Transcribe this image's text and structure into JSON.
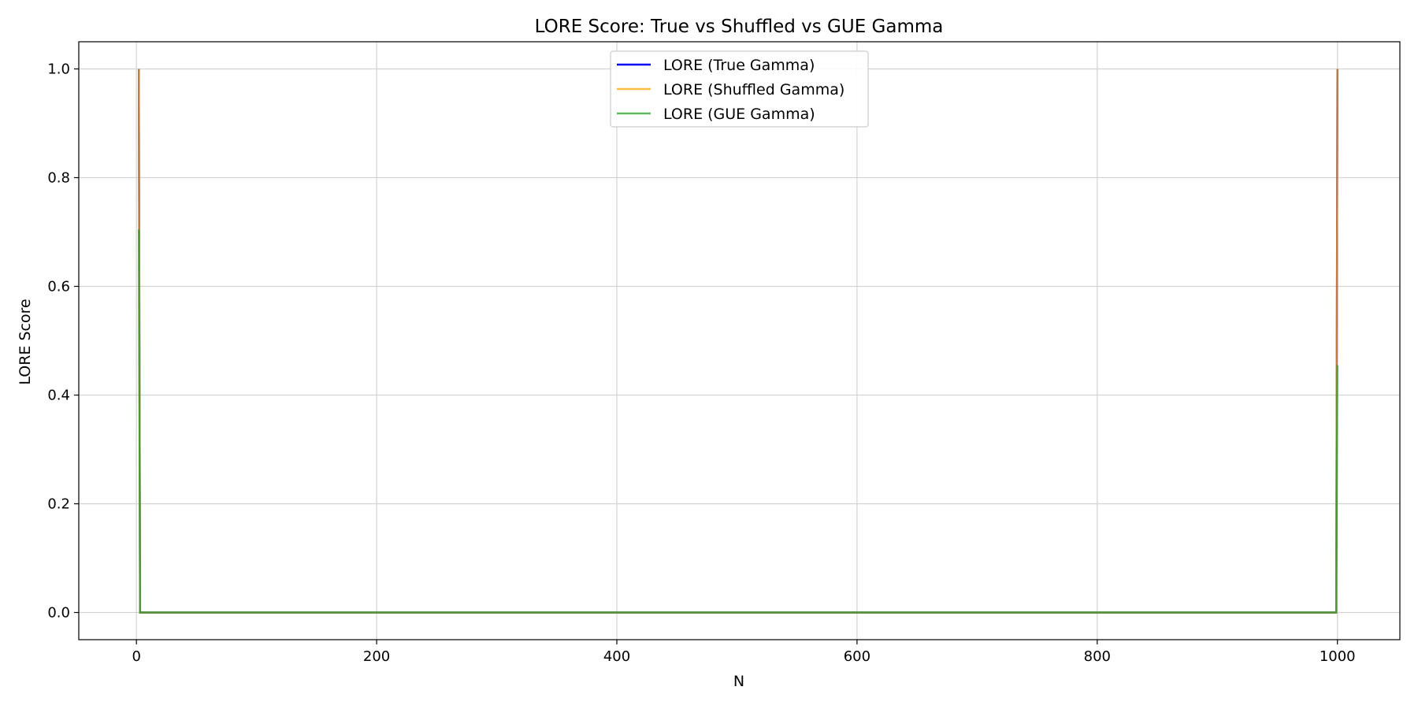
{
  "chart_data": {
    "type": "line",
    "title": "LORE Score: True vs Shuffled vs GUE Gamma",
    "xlabel": "N",
    "ylabel": "LORE Score",
    "xlim": [
      -48,
      1052
    ],
    "ylim": [
      -0.05,
      1.05
    ],
    "xticks": [
      0,
      200,
      400,
      600,
      800,
      1000
    ],
    "yticks": [
      0.0,
      0.2,
      0.4,
      0.6,
      0.8,
      1.0
    ],
    "xtick_labels": [
      "0",
      "200",
      "400",
      "600",
      "800",
      "1000"
    ],
    "ytick_labels": [
      "0.0",
      "0.2",
      "0.4",
      "0.6",
      "0.8",
      "1.0"
    ],
    "grid": true,
    "legend_position": "top-center",
    "series": [
      {
        "name": "LORE (True Gamma)",
        "color": "#0000ff",
        "x": [
          2,
          3,
          999,
          1000
        ],
        "y": [
          1.0,
          0.0,
          0.0,
          1.0
        ]
      },
      {
        "name": "LORE (Shuffled Gamma)",
        "color": "#ffa500",
        "x": [
          2,
          3,
          999,
          1000
        ],
        "y": [
          1.0,
          0.0,
          0.0,
          1.0
        ]
      },
      {
        "name": "LORE (GUE Gamma)",
        "color": "#2ca02c",
        "x": [
          2,
          3,
          999,
          1000
        ],
        "y": [
          0.705,
          0.0,
          0.0,
          0.455
        ]
      }
    ]
  }
}
